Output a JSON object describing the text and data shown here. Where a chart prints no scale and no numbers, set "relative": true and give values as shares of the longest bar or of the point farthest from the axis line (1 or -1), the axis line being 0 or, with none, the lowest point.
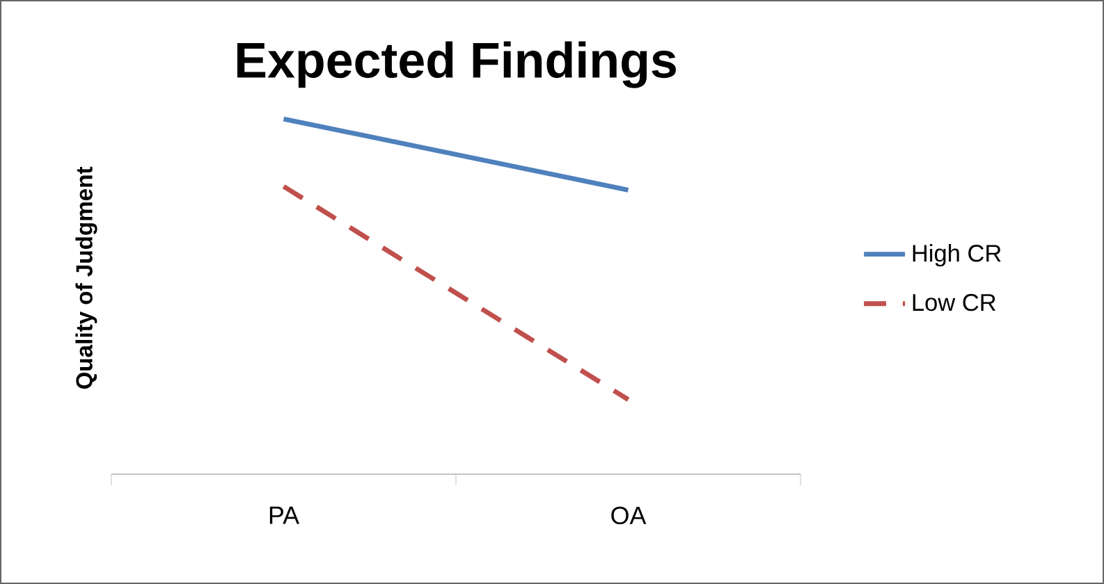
{
  "chart_data": {
    "type": "line",
    "title": "Expected Findings",
    "ylabel": "Quality of Judgment",
    "categories": [
      "PA",
      "OA"
    ],
    "relative": true,
    "legend": "right",
    "grid": false,
    "marker": "none",
    "series": [
      {
        "name": "High CR",
        "color": "#4f81bd",
        "values": [
          1,
          0.8
        ],
        "line_style": "solid"
      },
      {
        "name": "Low CR",
        "color": "#c0504d",
        "values": [
          0.81,
          0.21
        ],
        "line_style": "dashed"
      }
    ]
  }
}
